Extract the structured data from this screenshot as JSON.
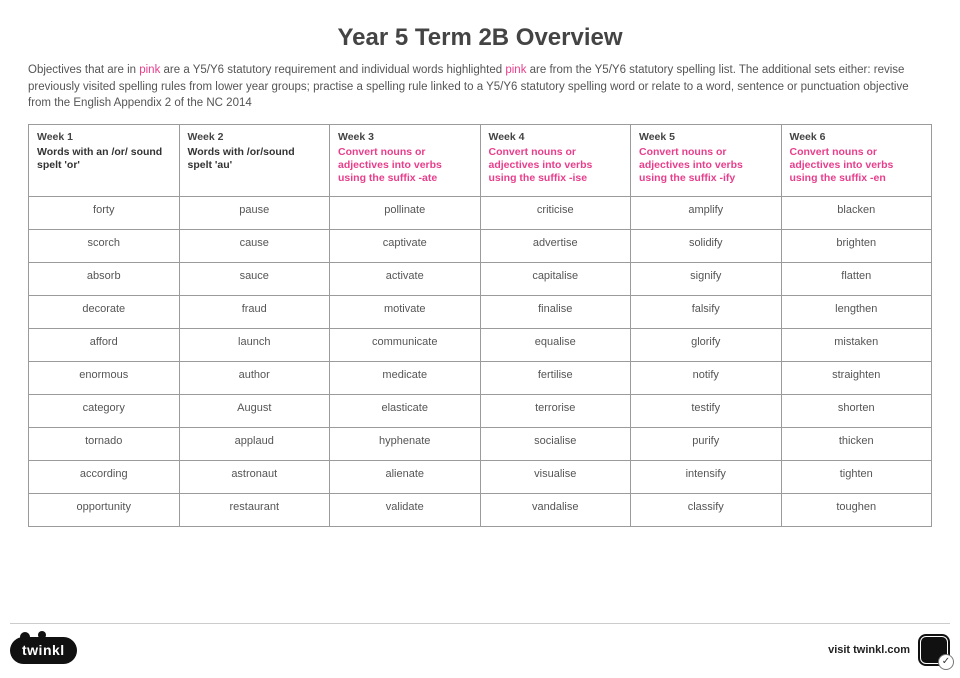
{
  "title": "Year 5 Term 2B Overview",
  "intro_parts": {
    "p1": "Objectives that are in ",
    "pink1": "pink",
    "p2": " are a Y5/Y6 statutory requirement and individual words highlighted ",
    "pink2": "pink",
    "p3": " are from the Y5/Y6 statutory spelling list. The additional sets either: revise previously visited spelling rules from lower year groups; practise a spelling rule linked to a Y5/Y6 statutory spelling word or relate to a word, sentence or punctuation objective from the English Appendix 2 of the NC 2014"
  },
  "columns": [
    {
      "week": "Week 1",
      "rule": "Words with an /or/ sound spelt 'or'",
      "rule_pink": false
    },
    {
      "week": "Week 2",
      "rule": "Words with /or/sound spelt 'au'",
      "rule_pink": false
    },
    {
      "week": "Week 3",
      "rule": "Convert nouns or adjectives into verbs using the suffix -ate",
      "rule_pink": true
    },
    {
      "week": "Week 4",
      "rule": "Convert nouns or adjectives into verbs using the suffix -ise",
      "rule_pink": true
    },
    {
      "week": "Week 5",
      "rule": "Convert nouns or adjectives into verbs using the suffix -ify",
      "rule_pink": true
    },
    {
      "week": "Week 6",
      "rule": "Convert nouns or adjectives into verbs using the suffix -en",
      "rule_pink": true
    }
  ],
  "rows": [
    [
      {
        "t": "forty",
        "p": true
      },
      {
        "t": "pause"
      },
      {
        "t": "pollinate"
      },
      {
        "t": "criticise",
        "p": true
      },
      {
        "t": "amplify"
      },
      {
        "t": "blacken"
      }
    ],
    [
      {
        "t": "scorch"
      },
      {
        "t": "cause"
      },
      {
        "t": "captivate"
      },
      {
        "t": "advertise"
      },
      {
        "t": "solidify"
      },
      {
        "t": "brighten"
      }
    ],
    [
      {
        "t": "absorb"
      },
      {
        "t": "sauce"
      },
      {
        "t": "activate"
      },
      {
        "t": "capitalise"
      },
      {
        "t": "signify"
      },
      {
        "t": "flatten"
      }
    ],
    [
      {
        "t": "decorate"
      },
      {
        "t": "fraud"
      },
      {
        "t": "motivate"
      },
      {
        "t": "finalise"
      },
      {
        "t": "falsify"
      },
      {
        "t": "lengthen"
      }
    ],
    [
      {
        "t": "afford"
      },
      {
        "t": "launch"
      },
      {
        "t": "communicate",
        "p": true
      },
      {
        "t": "equalise"
      },
      {
        "t": "glorify"
      },
      {
        "t": "mistaken"
      }
    ],
    [
      {
        "t": "enormous"
      },
      {
        "t": "author"
      },
      {
        "t": "medicate"
      },
      {
        "t": "fertilise"
      },
      {
        "t": "notify"
      },
      {
        "t": "straighten"
      }
    ],
    [
      {
        "t": "category",
        "p": true
      },
      {
        "t": "August"
      },
      {
        "t": "elasticate"
      },
      {
        "t": "terrorise"
      },
      {
        "t": "testify"
      },
      {
        "t": "shorten"
      }
    ],
    [
      {
        "t": "tornado"
      },
      {
        "t": "applaud"
      },
      {
        "t": "hyphenate"
      },
      {
        "t": "socialise"
      },
      {
        "t": "purify"
      },
      {
        "t": "thicken"
      }
    ],
    [
      {
        "t": "according",
        "p": true
      },
      {
        "t": "astronaut"
      },
      {
        "t": "alienate"
      },
      {
        "t": "visualise"
      },
      {
        "t": "intensify"
      },
      {
        "t": "tighten"
      }
    ],
    [
      {
        "t": "opportunity",
        "p": true
      },
      {
        "t": "restaurant",
        "p": true
      },
      {
        "t": "validate"
      },
      {
        "t": "vandalise"
      },
      {
        "t": "classify"
      },
      {
        "t": "toughen"
      }
    ]
  ],
  "footer": {
    "logo_text": "twinkl",
    "visit_text": "visit twinkl.com"
  },
  "style": {
    "pink": "#e83e8c",
    "text": "#555555",
    "border": "#9b9b9b",
    "background": "#ffffff"
  }
}
